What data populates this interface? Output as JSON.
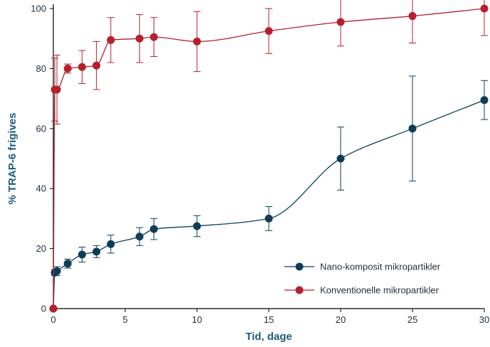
{
  "chart_data": {
    "type": "line",
    "xlabel": "Tid, dage",
    "ylabel": "% TRAP-6 frigives",
    "xlim": [
      0,
      30
    ],
    "ylim": [
      0,
      100
    ],
    "x_ticks": [
      0,
      5,
      10,
      15,
      20,
      25,
      30
    ],
    "y_ticks": [
      0,
      20,
      40,
      60,
      80,
      100
    ],
    "grid": false,
    "legend_position": "bottom-right",
    "axis_color": "#000000",
    "label_color": "#1f5c7a",
    "series": [
      {
        "name": "Nano-komposit mikropartikler",
        "color": "#0f3d57",
        "points": [
          {
            "x": 0,
            "y": 0,
            "err": 0
          },
          {
            "x": 0.1,
            "y": 12,
            "err": 1
          },
          {
            "x": 0.25,
            "y": 12.5,
            "err": 1.5
          },
          {
            "x": 1,
            "y": 15,
            "err": 1.5
          },
          {
            "x": 2,
            "y": 18,
            "err": 2.5
          },
          {
            "x": 3,
            "y": 19,
            "err": 2
          },
          {
            "x": 4,
            "y": 21.5,
            "err": 3
          },
          {
            "x": 6,
            "y": 24,
            "err": 3
          },
          {
            "x": 7,
            "y": 26.5,
            "err": 3.5
          },
          {
            "x": 10,
            "y": 27.5,
            "err": 3.5
          },
          {
            "x": 15,
            "y": 30,
            "err": 4
          },
          {
            "x": 20,
            "y": 50,
            "err": 10.5
          },
          {
            "x": 25,
            "y": 60,
            "err": 17.5
          },
          {
            "x": 30,
            "y": 69.5,
            "err": 6.5
          }
        ]
      },
      {
        "name": "Konventionelle mikropartikler",
        "color": "#b5202e",
        "points": [
          {
            "x": 0,
            "y": 0,
            "err": 0
          },
          {
            "x": 0.1,
            "y": 73,
            "err": 10.5
          },
          {
            "x": 0.25,
            "y": 73,
            "err": 11.5
          },
          {
            "x": 1,
            "y": 80,
            "err": 1.5
          },
          {
            "x": 2,
            "y": 80.5,
            "err": 5.5
          },
          {
            "x": 3,
            "y": 81,
            "err": 8
          },
          {
            "x": 4,
            "y": 89.5,
            "err": 7.5
          },
          {
            "x": 6,
            "y": 90,
            "err": 8
          },
          {
            "x": 7,
            "y": 90.5,
            "err": 6.5
          },
          {
            "x": 10,
            "y": 89,
            "err": 10
          },
          {
            "x": 15,
            "y": 92.5,
            "err": 7.5
          },
          {
            "x": 20,
            "y": 95.5,
            "err": 8
          },
          {
            "x": 25,
            "y": 97.5,
            "err": 9
          },
          {
            "x": 30,
            "y": 100,
            "err": 9
          }
        ]
      }
    ]
  }
}
